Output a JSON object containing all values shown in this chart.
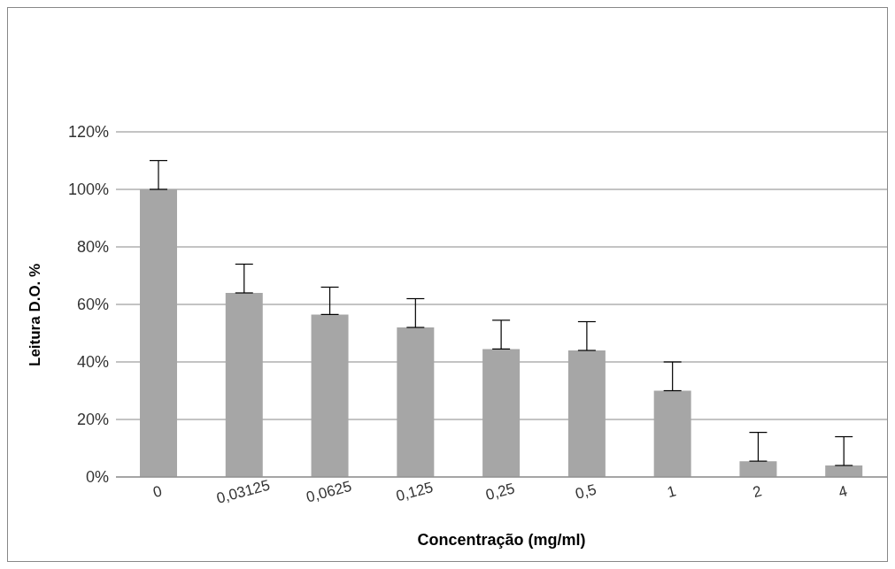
{
  "chart_data": {
    "type": "bar",
    "xlabel": "Concentração (mg/ml)",
    "ylabel": "Leitura D.O. %",
    "categories": [
      "0",
      "0,03125",
      "0,0625",
      "0,125",
      "0,25",
      "0,5",
      "1",
      "2",
      "4"
    ],
    "values": [
      100,
      64,
      56.5,
      52,
      44.5,
      44,
      30,
      5.5,
      4
    ],
    "errors": [
      [
        100,
        110
      ],
      [
        64,
        74
      ],
      [
        56.5,
        66
      ],
      [
        52,
        62
      ],
      [
        44.5,
        54.5
      ],
      [
        44,
        54
      ],
      [
        30,
        40
      ],
      [
        5.5,
        15.5
      ],
      [
        4,
        14
      ]
    ],
    "color": "#a6a6a6",
    "ylim": [
      0,
      120
    ],
    "yticks": [
      {
        "value": 0,
        "label": "0%"
      },
      {
        "value": 20,
        "label": "20%"
      },
      {
        "value": 40,
        "label": "40%"
      },
      {
        "value": 60,
        "label": "60%"
      },
      {
        "value": 80,
        "label": "80%"
      },
      {
        "value": 100,
        "label": "100%"
      },
      {
        "value": 120,
        "label": "120%"
      }
    ],
    "grid": "y",
    "legend": false
  }
}
